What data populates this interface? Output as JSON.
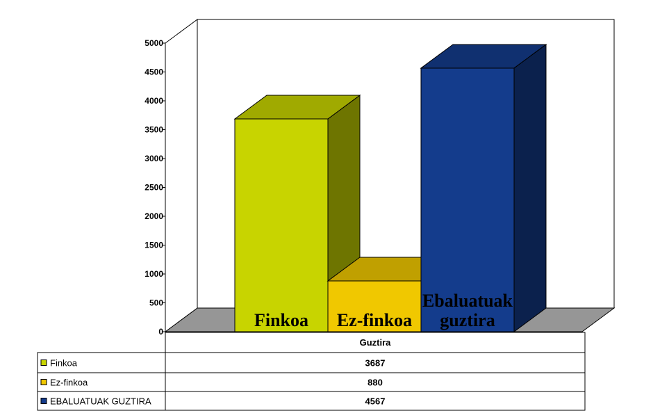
{
  "chart_data": {
    "type": "bar",
    "categories": [
      "Guztira"
    ],
    "series": [
      {
        "name": "Finkoa",
        "values": [
          3687
        ],
        "color": "#c8d400",
        "bar_label": "Finkoa"
      },
      {
        "name": "Ez-finkoa",
        "values": [
          880
        ],
        "color": "#f0c800",
        "bar_label": "Ez-finkoa"
      },
      {
        "name": "EBALUATUAK GUZTIRA",
        "values": [
          4567
        ],
        "color": "#143c8c",
        "bar_label": "Ebaluatuak guztira"
      }
    ],
    "yticks": [
      "0",
      "500",
      "1000",
      "1500",
      "2000",
      "2500",
      "3000",
      "3500",
      "4000",
      "4500",
      "5000"
    ],
    "ylim": [
      0,
      5000
    ],
    "grid": false,
    "legend": "table-left",
    "table": {
      "header": "Guztira",
      "rows": [
        {
          "label": "Finkoa",
          "value": "3687"
        },
        {
          "label": "Ez-finkoa",
          "value": "880"
        },
        {
          "label": "EBALUATUAK GUZTIRA",
          "value": "4567"
        }
      ]
    }
  }
}
